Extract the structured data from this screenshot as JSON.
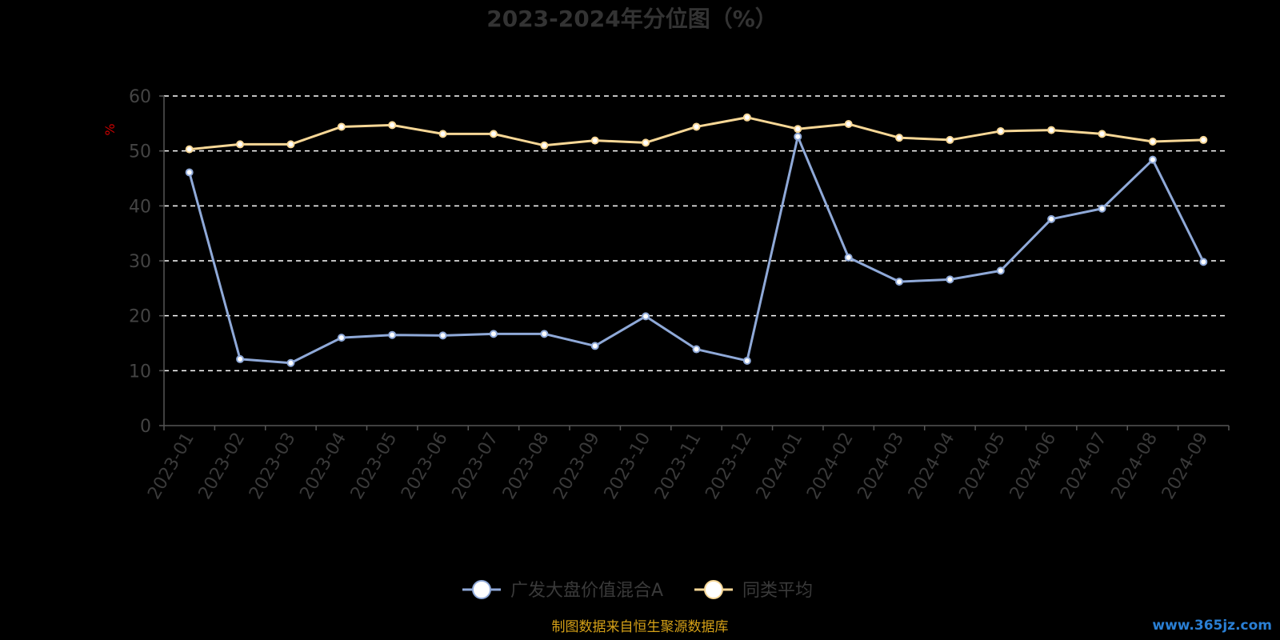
{
  "chart_data": {
    "type": "line",
    "title": "2023-2024年分位图（%）",
    "ylabel": "%",
    "xlabel": "",
    "ylim": [
      0,
      60
    ],
    "yticks": [
      0,
      10,
      20,
      30,
      40,
      50,
      60
    ],
    "grid": true,
    "legend_position": "bottom-center",
    "categories": [
      "2023-01",
      "2023-02",
      "2023-03",
      "2023-04",
      "2023-05",
      "2023-06",
      "2023-07",
      "2023-08",
      "2023-09",
      "2023-10",
      "2023-11",
      "2023-12",
      "2024-01",
      "2024-02",
      "2024-03",
      "2024-04",
      "2024-05",
      "2024-06",
      "2024-07",
      "2024-08",
      "2024-09"
    ],
    "series": [
      {
        "name": "广发大盘价值混合A",
        "color": "#8fa9d8",
        "values": [
          46.1,
          12.1,
          11.4,
          16.0,
          16.5,
          16.4,
          16.7,
          16.7,
          14.5,
          19.9,
          13.9,
          11.8,
          52.6,
          30.6,
          26.2,
          26.6,
          28.2,
          37.6,
          39.5,
          48.4,
          29.8
        ]
      },
      {
        "name": "同类平均",
        "color": "#f7d796",
        "values": [
          50.3,
          51.2,
          51.2,
          54.4,
          54.7,
          53.1,
          53.1,
          51.0,
          51.9,
          51.5,
          54.4,
          56.1,
          54.0,
          54.9,
          52.4,
          52.0,
          53.6,
          53.8,
          53.1,
          51.7,
          52.0
        ]
      }
    ]
  },
  "footer": {
    "source": "制图数据来自恒生聚源数据库",
    "watermark": "www.365jz.com"
  },
  "colors": {
    "background": "#000000",
    "grid": "#ffffff",
    "axis": "#555555"
  }
}
